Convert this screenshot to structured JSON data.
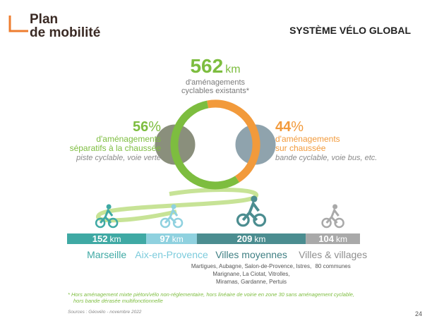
{
  "header": {
    "logo_line1": "Plan",
    "logo_line2": "de mobilité",
    "title": "SYSTÈME VÉLO GLOBAL"
  },
  "total": {
    "value": 562,
    "unit": "km",
    "label_lines": [
      "d'aménagements",
      "cyclables existants*"
    ]
  },
  "split": [
    {
      "value": 56,
      "unit": "%",
      "lines": [
        "d'aménagements",
        "séparatifs à la chaussée"
      ],
      "examples": "piste cyclable, voie verte",
      "color": "#7dbd3f"
    },
    {
      "value": 44,
      "unit": "%",
      "lines": [
        "d'aménagements",
        "sur chaussée"
      ],
      "examples": "bande cyclable, voie bus, etc.",
      "color": "#f29a3b"
    }
  ],
  "segments": [
    {
      "value": 152,
      "unit": "km",
      "name": "Marseille",
      "color": "#3fa9a4",
      "name_color": "#3fa9a4",
      "notes": []
    },
    {
      "value": 97,
      "unit": "km",
      "name": "Aix-en-Provence",
      "color": "#8fd1df",
      "name_color": "#7ccbdc",
      "notes": []
    },
    {
      "value": 209,
      "unit": "km",
      "name": "Villes moyennes",
      "color": "#4b8d90",
      "name_color": "#3f7f83",
      "notes": [
        "Martigues, Aubagne, Salon-de-Provence, Istres,",
        "Marignane, La Ciotat, Vitrolles,",
        "Miramas, Gardanne, Pertuis"
      ]
    },
    {
      "value": 104,
      "unit": "km",
      "name": "Villes & villages",
      "color": "#a9a9a9",
      "name_color": "#8f8f8f",
      "notes": [
        "80 communes"
      ]
    }
  ],
  "footnote_lines": [
    "* Hors aménagement mixte piéton/vélo non-réglementaire, hors linéaire de voirie en zone 30 sans aménagement cyclable,",
    "hors bande dérasée multifonctionnelle"
  ],
  "source": "Sources : Géovélo - novembre 2022",
  "page": "24"
}
